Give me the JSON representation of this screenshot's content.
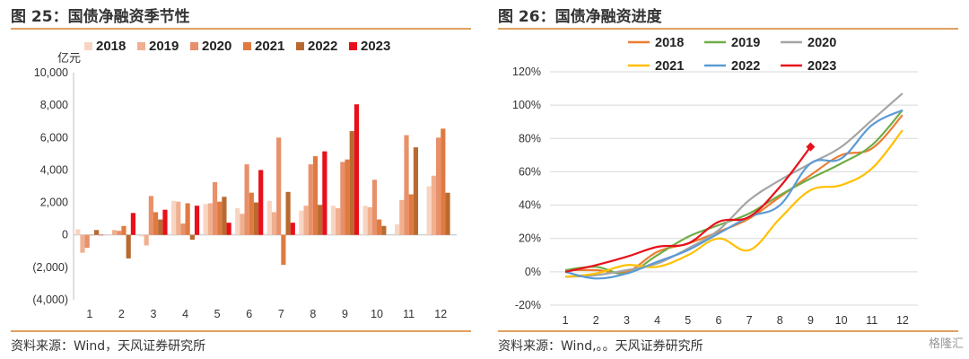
{
  "left": {
    "figure_title": "图 25：国债净融资季节性",
    "source": "资料来源：Wind，天风证券研究所"
  },
  "right": {
    "figure_title": "图 26：国债净融资进度",
    "source": "资料来源：Wind,。。天风证券研究所"
  },
  "watermark": "格隆汇",
  "chart_data": [
    {
      "type": "bar",
      "unit_label": "亿元",
      "categories": [
        "1",
        "2",
        "3",
        "4",
        "5",
        "6",
        "7",
        "8",
        "9",
        "10",
        "11",
        "12"
      ],
      "ylim": [
        -4000,
        10000
      ],
      "yticks": [
        -4000,
        -2000,
        0,
        2000,
        4000,
        6000,
        8000,
        10000
      ],
      "ytick_labels": [
        "(4,000)",
        "(2,000)",
        "0",
        "2,000",
        "4,000",
        "6,000",
        "8,000",
        "10,000"
      ],
      "legend_position": "top",
      "grid": false,
      "series": [
        {
          "name": "2018",
          "color": "#f8d5c2",
          "values": [
            350,
            0,
            -100,
            2100,
            1900,
            1650,
            2100,
            1500,
            1800,
            1800,
            650,
            3000
          ]
        },
        {
          "name": "2019",
          "color": "#f0b090",
          "values": [
            -1100,
            300,
            -650,
            2050,
            1950,
            1300,
            1400,
            1800,
            1650,
            1700,
            2150,
            3650
          ]
        },
        {
          "name": "2020",
          "color": "#e8906a",
          "values": [
            -800,
            250,
            2400,
            700,
            3250,
            4350,
            6000,
            4350,
            4500,
            3400,
            6150,
            6000
          ]
        },
        {
          "name": "2021",
          "color": "#e07a40",
          "values": [
            0,
            550,
            1400,
            1950,
            2050,
            2600,
            -1850,
            4850,
            4650,
            950,
            2500,
            6550
          ]
        },
        {
          "name": "2022",
          "color": "#b86a30",
          "values": [
            300,
            -1450,
            950,
            -300,
            2350,
            2000,
            2650,
            1850,
            6400,
            550,
            5400,
            2600
          ]
        },
        {
          "name": "2023",
          "color": "#e8101a",
          "values": [
            0,
            1350,
            1550,
            1800,
            750,
            4000,
            750,
            5150,
            8050,
            null,
            null,
            null
          ]
        }
      ]
    },
    {
      "type": "line",
      "x": [
        1,
        2,
        3,
        4,
        5,
        6,
        7,
        8,
        9,
        10,
        11,
        12
      ],
      "ylim": [
        -20,
        120
      ],
      "yticks": [
        -20,
        0,
        20,
        40,
        60,
        80,
        100,
        120
      ],
      "ytick_labels": [
        "-20%",
        "0%",
        "20%",
        "40%",
        "60%",
        "80%",
        "100%",
        "120%"
      ],
      "legend_position": "top",
      "grid": true,
      "series": [
        {
          "name": "2018",
          "color": "#ed7d31",
          "values": [
            1,
            1,
            0,
            12,
            17,
            24,
            32,
            45,
            58,
            70,
            74,
            94
          ]
        },
        {
          "name": "2019",
          "color": "#70ad47",
          "values": [
            1,
            3,
            -1,
            10,
            21,
            28,
            35,
            46,
            56,
            65,
            76,
            97
          ]
        },
        {
          "name": "2020",
          "color": "#a5a5a5",
          "values": [
            -3,
            -2,
            1,
            5,
            14,
            25,
            43,
            55,
            65,
            75,
            91,
            107
          ]
        },
        {
          "name": "2021",
          "color": "#ffc000",
          "values": [
            -3,
            -1,
            4,
            3,
            10,
            20,
            13,
            32,
            49,
            52,
            62,
            85
          ]
        },
        {
          "name": "2022",
          "color": "#5b9bd5",
          "values": [
            0,
            -4,
            -1,
            6,
            13,
            23,
            33,
            40,
            65,
            68,
            88,
            97
          ]
        },
        {
          "name": "2023",
          "color": "#e8101a",
          "values": [
            0,
            4,
            9,
            15,
            17,
            30,
            33,
            51,
            75,
            null,
            null,
            null
          ]
        }
      ]
    }
  ]
}
